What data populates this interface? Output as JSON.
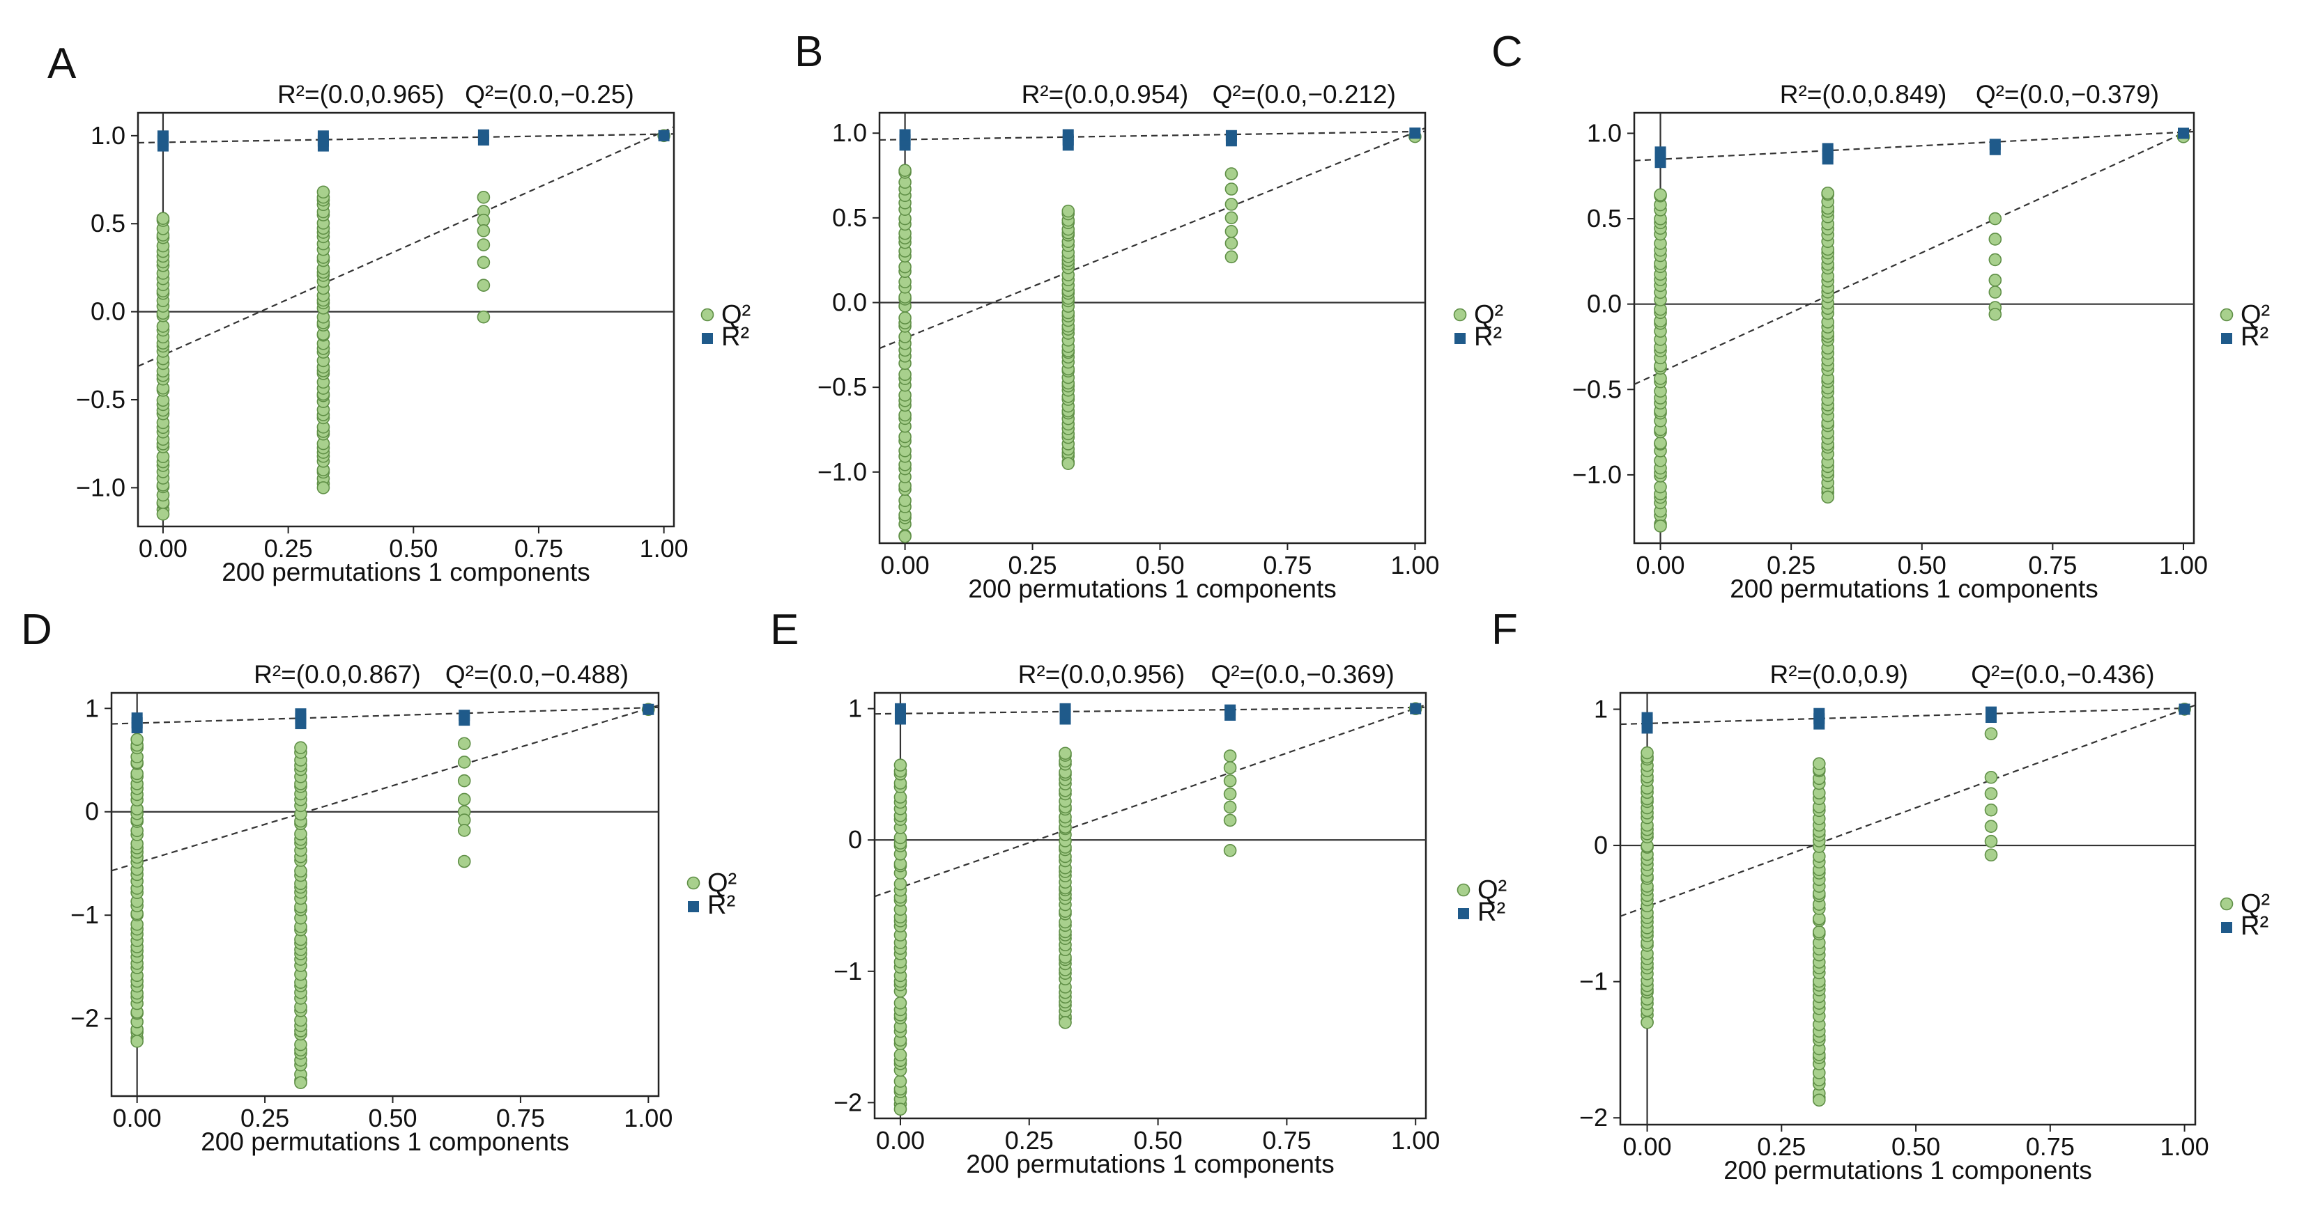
{
  "colors": {
    "q2_fill": "#a8d08d",
    "q2_edge": "#5f8f46",
    "r2_fill": "#1f5a8a",
    "axis": "#222222"
  },
  "legend": {
    "q2": "Q²",
    "r2": "R²"
  },
  "chart_data": [
    {
      "type": "scatter",
      "panel": "A",
      "r2_stat": "R²=(0.0,0.965)",
      "q2_stat": "Q²=(0.0,−0.25)",
      "xlabel": "200 permutations 1 components",
      "xlim": [
        -0.05,
        1.02
      ],
      "ylim": [
        -1.22,
        1.13
      ],
      "xticks": [
        0.0,
        0.25,
        0.5,
        0.75,
        1.0
      ],
      "xtick_labels": [
        "0.00",
        "0.25",
        "0.50",
        "0.75",
        "1.00"
      ],
      "yticks": [
        -1.0,
        -0.5,
        0.0,
        0.5,
        1.0
      ],
      "ytick_labels": [
        "−1.0",
        "−0.5",
        "0.0",
        "0.5",
        "1.0"
      ],
      "r2_points": {
        "x": [
          0.0,
          0.32,
          0.64,
          1.0
        ],
        "y": [
          0.97,
          0.97,
          0.99,
          1.0
        ]
      },
      "q2_points": {
        "x0": {
          "min": -1.15,
          "max": 0.53
        },
        "x1": {
          "min": -1.0,
          "max": 0.68
        },
        "x2": [
          0.65,
          0.57,
          0.52,
          0.46,
          0.38,
          0.28,
          0.15,
          -0.03
        ],
        "final": 1.0
      },
      "r2_line": [
        [
          -0.05,
          0.96
        ],
        [
          1.02,
          1.01
        ]
      ],
      "q2_line": [
        [
          -0.05,
          -0.31
        ],
        [
          1.02,
          1.05
        ]
      ]
    },
    {
      "type": "scatter",
      "panel": "B",
      "r2_stat": "R²=(0.0,0.954)",
      "q2_stat": "Q²=(0.0,−0.212)",
      "xlabel": "200 permutations 1 components",
      "xlim": [
        -0.05,
        1.02
      ],
      "ylim": [
        -1.42,
        1.12
      ],
      "xticks": [
        0.0,
        0.25,
        0.5,
        0.75,
        1.0
      ],
      "xtick_labels": [
        "0.00",
        "0.25",
        "0.50",
        "0.75",
        "1.00"
      ],
      "yticks": [
        -1.0,
        -0.5,
        0.0,
        0.5,
        1.0
      ],
      "ytick_labels": [
        "−1.0",
        "−0.5",
        "0.0",
        "0.5",
        "1.0"
      ],
      "r2_points": {
        "x": [
          0.0,
          0.32,
          0.64,
          1.0
        ],
        "y": [
          0.96,
          0.96,
          0.97,
          1.0
        ]
      },
      "q2_points": {
        "x0": {
          "min": -1.38,
          "max": 0.78
        },
        "x1": {
          "min": -0.95,
          "max": 0.54
        },
        "x2": [
          0.76,
          0.67,
          0.58,
          0.5,
          0.42,
          0.35,
          0.27
        ],
        "final": 0.98
      },
      "r2_line": [
        [
          -0.05,
          0.96
        ],
        [
          1.02,
          1.01
        ]
      ],
      "q2_line": [
        [
          -0.05,
          -0.27
        ],
        [
          1.02,
          1.03
        ]
      ]
    },
    {
      "type": "scatter",
      "panel": "C",
      "r2_stat": "R²=(0.0,0.849)",
      "q2_stat": "Q²=(0.0,−0.379)",
      "xlabel": "200 permutations 1 components",
      "xlim": [
        -0.05,
        1.02
      ],
      "ylim": [
        -1.4,
        1.12
      ],
      "xticks": [
        0.0,
        0.25,
        0.5,
        0.75,
        1.0
      ],
      "xtick_labels": [
        "0.00",
        "0.25",
        "0.50",
        "0.75",
        "1.00"
      ],
      "yticks": [
        -1.0,
        -0.5,
        0.0,
        0.5,
        1.0
      ],
      "ytick_labels": [
        "−1.0",
        "−0.5",
        "0.0",
        "0.5",
        "1.0"
      ],
      "r2_points": {
        "x": [
          0.0,
          0.32,
          0.64,
          1.0
        ],
        "y": [
          0.86,
          0.88,
          0.92,
          1.0
        ]
      },
      "q2_points": {
        "x0": {
          "min": -1.3,
          "max": 0.64
        },
        "x1": {
          "min": -1.13,
          "max": 0.65
        },
        "x2": [
          0.5,
          0.38,
          0.26,
          0.14,
          0.07,
          -0.02,
          -0.06
        ],
        "final": 0.98
      },
      "r2_line": [
        [
          -0.05,
          0.84
        ],
        [
          1.02,
          1.01
        ]
      ],
      "q2_line": [
        [
          -0.05,
          -0.47
        ],
        [
          1.02,
          1.03
        ]
      ]
    },
    {
      "type": "scatter",
      "panel": "D",
      "r2_stat": "R²=(0.0,0.867)",
      "q2_stat": "Q²=(0.0,−0.488)",
      "xlabel": "200 permutations 1 components",
      "xlim": [
        -0.05,
        1.02
      ],
      "ylim": [
        -2.75,
        1.15
      ],
      "xticks": [
        0.0,
        0.25,
        0.5,
        0.75,
        1.0
      ],
      "xtick_labels": [
        "0.00",
        "0.25",
        "0.50",
        "0.75",
        "1.00"
      ],
      "yticks": [
        -2,
        -1,
        0,
        1
      ],
      "ytick_labels": [
        "−2",
        "−1",
        "0",
        "1"
      ],
      "r2_points": {
        "x": [
          0.0,
          0.32,
          0.64,
          1.0
        ],
        "y": [
          0.86,
          0.9,
          0.91,
          0.99
        ]
      },
      "q2_points": {
        "x0": {
          "min": -2.22,
          "max": 0.7
        },
        "x1": {
          "min": -2.62,
          "max": 0.62
        },
        "x2": [
          0.66,
          0.48,
          0.3,
          0.12,
          0.0,
          -0.08,
          -0.18,
          -0.48
        ],
        "final": 0.99
      },
      "r2_line": [
        [
          -0.05,
          0.85
        ],
        [
          1.02,
          1.01
        ]
      ],
      "q2_line": [
        [
          -0.05,
          -0.57
        ],
        [
          1.02,
          1.03
        ]
      ]
    },
    {
      "type": "scatter",
      "panel": "E",
      "r2_stat": "R²=(0.0,0.956)",
      "q2_stat": "Q²=(0.0,−0.369)",
      "xlabel": "200 permutations 1 components",
      "xlim": [
        -0.05,
        1.02
      ],
      "ylim": [
        -2.12,
        1.12
      ],
      "xticks": [
        0.0,
        0.25,
        0.5,
        0.75,
        1.0
      ],
      "xtick_labels": [
        "0.00",
        "0.25",
        "0.50",
        "0.75",
        "1.00"
      ],
      "yticks": [
        -2,
        -1,
        0,
        1
      ],
      "ytick_labels": [
        "−2",
        "−1",
        "0",
        "1"
      ],
      "r2_points": {
        "x": [
          0.0,
          0.32,
          0.64,
          1.0
        ],
        "y": [
          0.96,
          0.96,
          0.97,
          1.0
        ]
      },
      "q2_points": {
        "x0": {
          "min": -2.05,
          "max": 0.57
        },
        "x1": {
          "min": -1.39,
          "max": 0.66
        },
        "x2": [
          0.64,
          0.55,
          0.45,
          0.35,
          0.25,
          0.15,
          -0.08
        ],
        "final": 1.0
      },
      "r2_line": [
        [
          -0.05,
          0.96
        ],
        [
          1.02,
          1.01
        ]
      ],
      "q2_line": [
        [
          -0.05,
          -0.43
        ],
        [
          1.02,
          1.03
        ]
      ]
    },
    {
      "type": "scatter",
      "panel": "F",
      "r2_stat": "R²=(0.0,0.9)",
      "q2_stat": "Q²=(0.0,−0.436)",
      "xlabel": "200 permutations 1 components",
      "xlim": [
        -0.05,
        1.02
      ],
      "ylim": [
        -2.05,
        1.12
      ],
      "xticks": [
        0.0,
        0.25,
        0.5,
        0.75,
        1.0
      ],
      "xtick_labels": [
        "0.00",
        "0.25",
        "0.50",
        "0.75",
        "1.00"
      ],
      "yticks": [
        -2,
        -1,
        0,
        1
      ],
      "ytick_labels": [
        "−2",
        "−1",
        "0",
        "1"
      ],
      "r2_points": {
        "x": [
          0.0,
          0.32,
          0.64,
          1.0
        ],
        "y": [
          0.9,
          0.93,
          0.96,
          1.0
        ]
      },
      "q2_points": {
        "x0": {
          "min": -1.3,
          "max": 0.68
        },
        "x1": {
          "min": -1.87,
          "max": 0.6
        },
        "x2": [
          0.82,
          0.5,
          0.38,
          0.26,
          0.14,
          0.03,
          -0.07
        ],
        "final": 1.0
      },
      "r2_line": [
        [
          -0.05,
          0.89
        ],
        [
          1.02,
          1.01
        ]
      ],
      "q2_line": [
        [
          -0.05,
          -0.52
        ],
        [
          1.02,
          1.03
        ]
      ]
    }
  ]
}
